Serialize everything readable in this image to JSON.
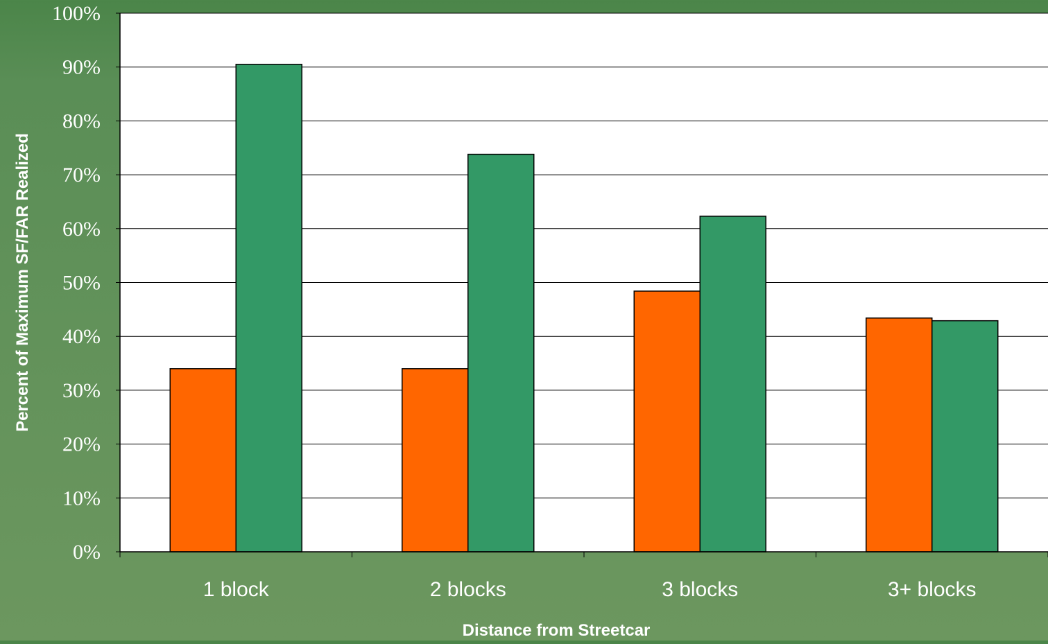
{
  "chart_data": {
    "type": "bar",
    "title": "",
    "xlabel": "Distance from Streetcar",
    "ylabel": "Percent of Maximum SF/FAR Realized",
    "categories": [
      "1 block",
      "2 blocks",
      "3 blocks",
      "3+ blocks"
    ],
    "yticks": [
      "0%",
      "10%",
      "20%",
      "30%",
      "40%",
      "50%",
      "60%",
      "70%",
      "80%",
      "90%",
      "100%"
    ],
    "ylim": [
      0,
      100
    ],
    "grid": true,
    "legend": "none",
    "series": [
      {
        "values": [
          34,
          34,
          48.4,
          43.4
        ],
        "color": "#ff6600"
      },
      {
        "values": [
          90.5,
          73.8,
          62.3,
          42.9
        ],
        "color": "#339966"
      }
    ]
  },
  "colors": {
    "background": "#5a8e56",
    "plot_area": "#ffffff",
    "gridline": "#000000"
  }
}
